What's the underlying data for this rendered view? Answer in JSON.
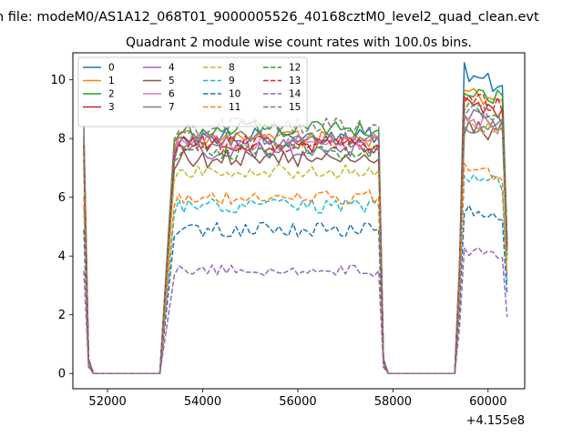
{
  "chart_data": {
    "type": "line",
    "suptitle": "n file: modeM0/AS1A12_068T01_9000005526_40168cztM0_level2_quad_clean.evt",
    "title": "Quadrant 2 module wise count rates with 100.0s bins.",
    "xlabel": "",
    "ylabel": "",
    "x_offset_label": "+4.155e8",
    "xlim": [
      51270,
      60770
    ],
    "ylim": [
      -0.52,
      10.92
    ],
    "x_ticks": [
      52000,
      54000,
      56000,
      58000,
      60000
    ],
    "x_tick_labels": [
      "52000",
      "54000",
      "56000",
      "58000",
      "60000"
    ],
    "y_ticks": [
      0,
      2,
      4,
      6,
      8,
      10
    ],
    "y_tick_labels": [
      "0",
      "2",
      "4",
      "6",
      "8",
      "10"
    ],
    "grid": false,
    "legend": {
      "placement": "top-left",
      "columns": 4
    },
    "segments": [
      {
        "x0": 51500,
        "dx": 100,
        "n": 3,
        "kind": "edge_down"
      },
      {
        "x0": 51800,
        "dx": 100,
        "n": 14,
        "kind": "zero"
      },
      {
        "x0": 53200,
        "dx": 100,
        "n": 3,
        "kind": "ramp_up"
      },
      {
        "x0": 53500,
        "dx": 100,
        "n": 42,
        "kind": "plateau"
      },
      {
        "x0": 57700,
        "dx": 100,
        "n": 3,
        "kind": "edge_down"
      },
      {
        "x0": 58000,
        "dx": 100,
        "n": 14,
        "kind": "zero"
      },
      {
        "x0": 59400,
        "dx": 100,
        "n": 1,
        "kind": "ramp_up"
      },
      {
        "x0": 59500,
        "dx": 100,
        "n": 9,
        "kind": "plateau"
      },
      {
        "x0": 60400,
        "dx": 100,
        "n": 1,
        "kind": "edge_down"
      }
    ],
    "series": [
      {
        "name": "0",
        "color": "#1f77b4",
        "dash": "solid",
        "level": 8.1,
        "noise": 0.3,
        "peak": 10.3
      },
      {
        "name": "1",
        "color": "#ff7f0e",
        "dash": "solid",
        "level": 8.0,
        "noise": 0.3,
        "peak": 9.6
      },
      {
        "name": "2",
        "color": "#2ca02c",
        "dash": "solid",
        "level": 8.3,
        "noise": 0.3,
        "peak": 9.7
      },
      {
        "name": "3",
        "color": "#d62728",
        "dash": "solid",
        "level": 7.8,
        "noise": 0.3,
        "peak": 9.2
      },
      {
        "name": "4",
        "color": "#9467bd",
        "dash": "solid",
        "level": 7.6,
        "noise": 0.3,
        "peak": 8.8
      },
      {
        "name": "5",
        "color": "#8c564b",
        "dash": "solid",
        "level": 7.3,
        "noise": 0.3,
        "peak": 8.4
      },
      {
        "name": "6",
        "color": "#e377c2",
        "dash": "solid",
        "level": 7.9,
        "noise": 0.3,
        "peak": 8.6
      },
      {
        "name": "7",
        "color": "#7f7f7f",
        "dash": "solid",
        "level": 8.0,
        "noise": 0.3,
        "peak": 8.5
      },
      {
        "name": "8",
        "color": "#bcbd22",
        "dash": "dashed",
        "level": 6.9,
        "noise": 0.25,
        "peak": 8.6
      },
      {
        "name": "9",
        "color": "#17becf",
        "dash": "dashed",
        "level": 5.7,
        "noise": 0.25,
        "peak": 6.7
      },
      {
        "name": "10",
        "color": "#1f77b4",
        "dash": "dashed",
        "level": 4.9,
        "noise": 0.25,
        "peak": 5.6
      },
      {
        "name": "11",
        "color": "#ff7f0e",
        "dash": "dashed",
        "level": 6.0,
        "noise": 0.25,
        "peak": 7.0
      },
      {
        "name": "12",
        "color": "#2ca02c",
        "dash": "dashed",
        "level": 7.6,
        "noise": 0.3,
        "peak": 9.0
      },
      {
        "name": "13",
        "color": "#d62728",
        "dash": "dashed",
        "level": 7.8,
        "noise": 0.3,
        "peak": 9.5
      },
      {
        "name": "14",
        "color": "#9467bd",
        "dash": "dashed",
        "level": 3.5,
        "noise": 0.2,
        "peak": 4.2
      },
      {
        "name": "15",
        "color": "#7f7f7f",
        "dash": "dashed",
        "level": 8.4,
        "noise": 0.3,
        "peak": 8.9
      }
    ]
  }
}
